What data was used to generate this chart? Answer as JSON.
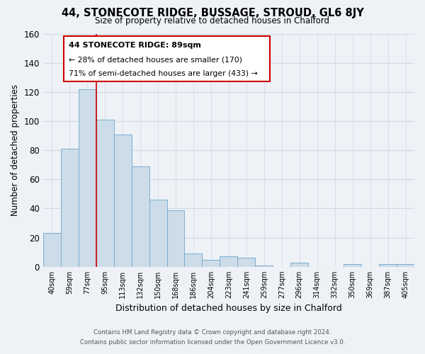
{
  "title": "44, STONECOTE RIDGE, BUSSAGE, STROUD, GL6 8JY",
  "subtitle": "Size of property relative to detached houses in Chalford",
  "xlabel": "Distribution of detached houses by size in Chalford",
  "ylabel": "Number of detached properties",
  "bar_color": "#ccdce8",
  "bar_edge_color": "#7aaed0",
  "categories": [
    "40sqm",
    "59sqm",
    "77sqm",
    "95sqm",
    "113sqm",
    "132sqm",
    "150sqm",
    "168sqm",
    "186sqm",
    "204sqm",
    "223sqm",
    "241sqm",
    "259sqm",
    "277sqm",
    "296sqm",
    "314sqm",
    "332sqm",
    "350sqm",
    "369sqm",
    "387sqm",
    "405sqm"
  ],
  "values": [
    23,
    81,
    122,
    101,
    91,
    69,
    46,
    39,
    9,
    5,
    7,
    6,
    1,
    0,
    3,
    0,
    0,
    2,
    0,
    2,
    2
  ],
  "ylim": [
    0,
    160
  ],
  "yticks": [
    0,
    20,
    40,
    60,
    80,
    100,
    120,
    140,
    160
  ],
  "reference_line_color": "#cc0000",
  "annotation_text_line1": "44 STONECOTE RIDGE: 89sqm",
  "annotation_text_line2": "← 28% of detached houses are smaller (170)",
  "annotation_text_line3": "71% of semi-detached houses are larger (433) →",
  "annotation_box_color": "#cc0000",
  "background_color": "#eef2f7",
  "grid_color": "#d0d8e4",
  "footer_line1": "Contains HM Land Registry data © Crown copyright and database right 2024.",
  "footer_line2": "Contains public sector information licensed under the Open Government Licence v3.0."
}
